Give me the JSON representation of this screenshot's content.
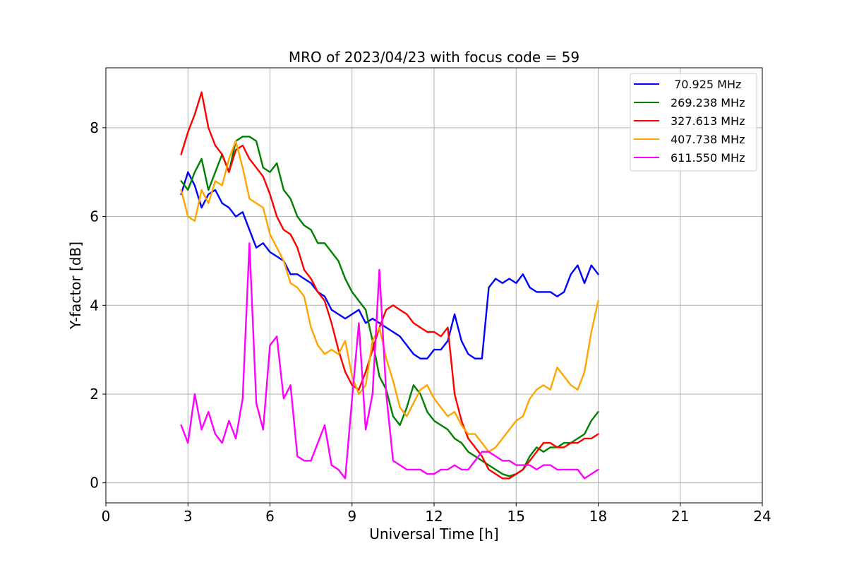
{
  "chart_data": {
    "type": "line",
    "title": "MRO of 2023/04/23 with focus code = 59",
    "xlabel": "Universal Time [h]",
    "ylabel": "Y-factor [dB]",
    "xlim": [
      0,
      24
    ],
    "ylim": [
      -0.45,
      9.35
    ],
    "xticks": [
      0,
      3,
      6,
      9,
      12,
      15,
      18,
      21,
      24
    ],
    "xtick_labels": [
      "0",
      "3",
      "6",
      "9",
      "12",
      "15",
      "18",
      "21",
      "24"
    ],
    "yticks": [
      0,
      2,
      4,
      6,
      8
    ],
    "ytick_labels": [
      "0",
      "2",
      "4",
      "6",
      "8"
    ],
    "grid": true,
    "legend_position": "top-right",
    "series": [
      {
        "name": " 70.925 MHz",
        "color": "#0000ff",
        "x": [
          2.75,
          3.0,
          3.25,
          3.5,
          3.75,
          4.0,
          4.25,
          4.5,
          4.75,
          5.0,
          5.25,
          5.5,
          5.75,
          6.0,
          6.25,
          6.5,
          6.75,
          7.0,
          7.25,
          7.5,
          7.75,
          8.0,
          8.25,
          8.5,
          8.75,
          9.0,
          9.25,
          9.5,
          9.75,
          10.0,
          10.25,
          10.5,
          10.75,
          11.0,
          11.25,
          11.5,
          11.75,
          12.0,
          12.25,
          12.5,
          12.75,
          13.0,
          13.25,
          13.5,
          13.75,
          14.0,
          14.25,
          14.5,
          14.75,
          15.0,
          15.25,
          15.5,
          15.75,
          16.0,
          16.25,
          16.5,
          16.75,
          17.0,
          17.25,
          17.5,
          17.75,
          18.0
        ],
        "y": [
          6.5,
          7.0,
          6.7,
          6.2,
          6.5,
          6.6,
          6.3,
          6.2,
          6.0,
          6.1,
          5.7,
          5.3,
          5.4,
          5.2,
          5.1,
          5.0,
          4.7,
          4.7,
          4.6,
          4.5,
          4.3,
          4.2,
          3.9,
          3.8,
          3.7,
          3.8,
          3.9,
          3.6,
          3.7,
          3.6,
          3.5,
          3.4,
          3.3,
          3.1,
          2.9,
          2.8,
          2.8,
          3.0,
          3.0,
          3.2,
          3.8,
          3.2,
          2.9,
          2.8,
          2.8,
          4.4,
          4.6,
          4.5,
          4.6,
          4.5,
          4.7,
          4.4,
          4.3,
          4.3,
          4.3,
          4.2,
          4.3,
          4.7,
          4.9,
          4.5,
          4.9,
          4.7
        ]
      },
      {
        "name": "269.238 MHz",
        "color": "#008000",
        "x": [
          2.75,
          3.0,
          3.25,
          3.5,
          3.75,
          4.0,
          4.25,
          4.5,
          4.75,
          5.0,
          5.25,
          5.5,
          5.75,
          6.0,
          6.25,
          6.5,
          6.75,
          7.0,
          7.25,
          7.5,
          7.75,
          8.0,
          8.25,
          8.5,
          8.75,
          9.0,
          9.25,
          9.5,
          9.75,
          10.0,
          10.25,
          10.5,
          10.75,
          11.0,
          11.25,
          11.5,
          11.75,
          12.0,
          12.25,
          12.5,
          12.75,
          13.0,
          13.25,
          13.5,
          13.75,
          14.0,
          14.25,
          14.5,
          14.75,
          15.0,
          15.25,
          15.5,
          15.75,
          16.0,
          16.25,
          16.5,
          16.75,
          17.0,
          17.25,
          17.5,
          17.75,
          18.0
        ],
        "y": [
          6.8,
          6.6,
          7.0,
          7.3,
          6.6,
          7.0,
          7.4,
          7.0,
          7.7,
          7.8,
          7.8,
          7.7,
          7.1,
          7.0,
          7.2,
          6.6,
          6.4,
          6.0,
          5.8,
          5.7,
          5.4,
          5.4,
          5.2,
          5.0,
          4.6,
          4.3,
          4.1,
          3.9,
          3.2,
          2.4,
          2.1,
          1.5,
          1.3,
          1.7,
          2.2,
          2.0,
          1.6,
          1.4,
          1.3,
          1.2,
          1.0,
          0.9,
          0.7,
          0.6,
          0.5,
          0.4,
          0.3,
          0.2,
          0.15,
          0.2,
          0.3,
          0.6,
          0.8,
          0.7,
          0.8,
          0.8,
          0.9,
          0.9,
          1.0,
          1.1,
          1.4,
          1.6
        ]
      },
      {
        "name": "327.613 MHz",
        "color": "#ff0000",
        "x": [
          2.75,
          3.0,
          3.25,
          3.5,
          3.75,
          4.0,
          4.25,
          4.5,
          4.75,
          5.0,
          5.25,
          5.5,
          5.75,
          6.0,
          6.25,
          6.5,
          6.75,
          7.0,
          7.25,
          7.5,
          7.75,
          8.0,
          8.25,
          8.5,
          8.75,
          9.0,
          9.25,
          9.5,
          9.75,
          10.0,
          10.25,
          10.5,
          10.75,
          11.0,
          11.25,
          11.5,
          11.75,
          12.0,
          12.25,
          12.5,
          12.75,
          13.0,
          13.25,
          13.5,
          13.75,
          14.0,
          14.25,
          14.5,
          14.75,
          15.0,
          15.25,
          15.5,
          15.75,
          16.0,
          16.25,
          16.5,
          16.75,
          17.0,
          17.25,
          17.5,
          17.75,
          18.0
        ],
        "y": [
          7.4,
          7.9,
          8.3,
          8.8,
          8.0,
          7.6,
          7.4,
          7.0,
          7.5,
          7.6,
          7.3,
          7.1,
          6.9,
          6.5,
          6.0,
          5.7,
          5.6,
          5.3,
          4.8,
          4.6,
          4.3,
          4.1,
          3.6,
          3.0,
          2.5,
          2.2,
          2.1,
          2.5,
          3.0,
          3.5,
          3.9,
          4.0,
          3.9,
          3.8,
          3.6,
          3.5,
          3.4,
          3.4,
          3.3,
          3.5,
          2.0,
          1.4,
          1.0,
          0.8,
          0.6,
          0.3,
          0.2,
          0.1,
          0.1,
          0.2,
          0.3,
          0.5,
          0.7,
          0.9,
          0.9,
          0.8,
          0.8,
          0.9,
          0.9,
          1.0,
          1.0,
          1.1
        ]
      },
      {
        "name": "407.738 MHz",
        "color": "#ffa500",
        "x": [
          2.75,
          3.0,
          3.25,
          3.5,
          3.75,
          4.0,
          4.25,
          4.5,
          4.75,
          5.0,
          5.25,
          5.5,
          5.75,
          6.0,
          6.25,
          6.5,
          6.75,
          7.0,
          7.25,
          7.5,
          7.75,
          8.0,
          8.25,
          8.5,
          8.75,
          9.0,
          9.25,
          9.5,
          9.75,
          10.0,
          10.25,
          10.5,
          10.75,
          11.0,
          11.25,
          11.5,
          11.75,
          12.0,
          12.25,
          12.5,
          12.75,
          13.0,
          13.25,
          13.5,
          13.75,
          14.0,
          14.25,
          14.5,
          14.75,
          15.0,
          15.25,
          15.5,
          15.75,
          16.0,
          16.25,
          16.5,
          16.75,
          17.0,
          17.25,
          17.5,
          17.75,
          18.0
        ],
        "y": [
          6.6,
          6.0,
          5.9,
          6.6,
          6.3,
          6.8,
          6.7,
          7.3,
          7.7,
          7.1,
          6.4,
          6.3,
          6.2,
          5.6,
          5.3,
          5.0,
          4.5,
          4.4,
          4.2,
          3.5,
          3.1,
          2.9,
          3.0,
          2.9,
          3.2,
          2.4,
          2.0,
          2.2,
          3.2,
          3.5,
          2.8,
          2.3,
          1.7,
          1.5,
          1.8,
          2.1,
          2.2,
          1.9,
          1.7,
          1.5,
          1.6,
          1.3,
          1.1,
          1.1,
          0.9,
          0.7,
          0.8,
          1.0,
          1.2,
          1.4,
          1.5,
          1.9,
          2.1,
          2.2,
          2.1,
          2.6,
          2.4,
          2.2,
          2.1,
          2.5,
          3.4,
          4.1
        ]
      },
      {
        "name": "611.550 MHz",
        "color": "#ff00ff",
        "x": [
          2.75,
          3.0,
          3.25,
          3.5,
          3.75,
          4.0,
          4.25,
          4.5,
          4.75,
          5.0,
          5.25,
          5.5,
          5.75,
          6.0,
          6.25,
          6.5,
          6.75,
          7.0,
          7.25,
          7.5,
          7.75,
          8.0,
          8.25,
          8.5,
          8.75,
          9.0,
          9.25,
          9.5,
          9.75,
          10.0,
          10.25,
          10.5,
          10.75,
          11.0,
          11.25,
          11.5,
          11.75,
          12.0,
          12.25,
          12.5,
          12.75,
          13.0,
          13.25,
          13.5,
          13.75,
          14.0,
          14.25,
          14.5,
          14.75,
          15.0,
          15.25,
          15.5,
          15.75,
          16.0,
          16.25,
          16.5,
          16.75,
          17.0,
          17.25,
          17.5,
          17.75,
          18.0
        ],
        "y": [
          1.3,
          0.9,
          2.0,
          1.2,
          1.6,
          1.1,
          0.9,
          1.4,
          1.0,
          1.9,
          5.4,
          1.8,
          1.2,
          3.1,
          3.3,
          1.9,
          2.2,
          0.6,
          0.5,
          0.5,
          0.9,
          1.3,
          0.4,
          0.3,
          0.1,
          1.9,
          3.6,
          1.2,
          2.0,
          4.8,
          2.0,
          0.5,
          0.4,
          0.3,
          0.3,
          0.3,
          0.2,
          0.2,
          0.3,
          0.3,
          0.4,
          0.3,
          0.3,
          0.5,
          0.7,
          0.7,
          0.6,
          0.5,
          0.5,
          0.4,
          0.4,
          0.4,
          0.3,
          0.4,
          0.4,
          0.3,
          0.3,
          0.3,
          0.3,
          0.1,
          0.2,
          0.3
        ]
      }
    ]
  }
}
